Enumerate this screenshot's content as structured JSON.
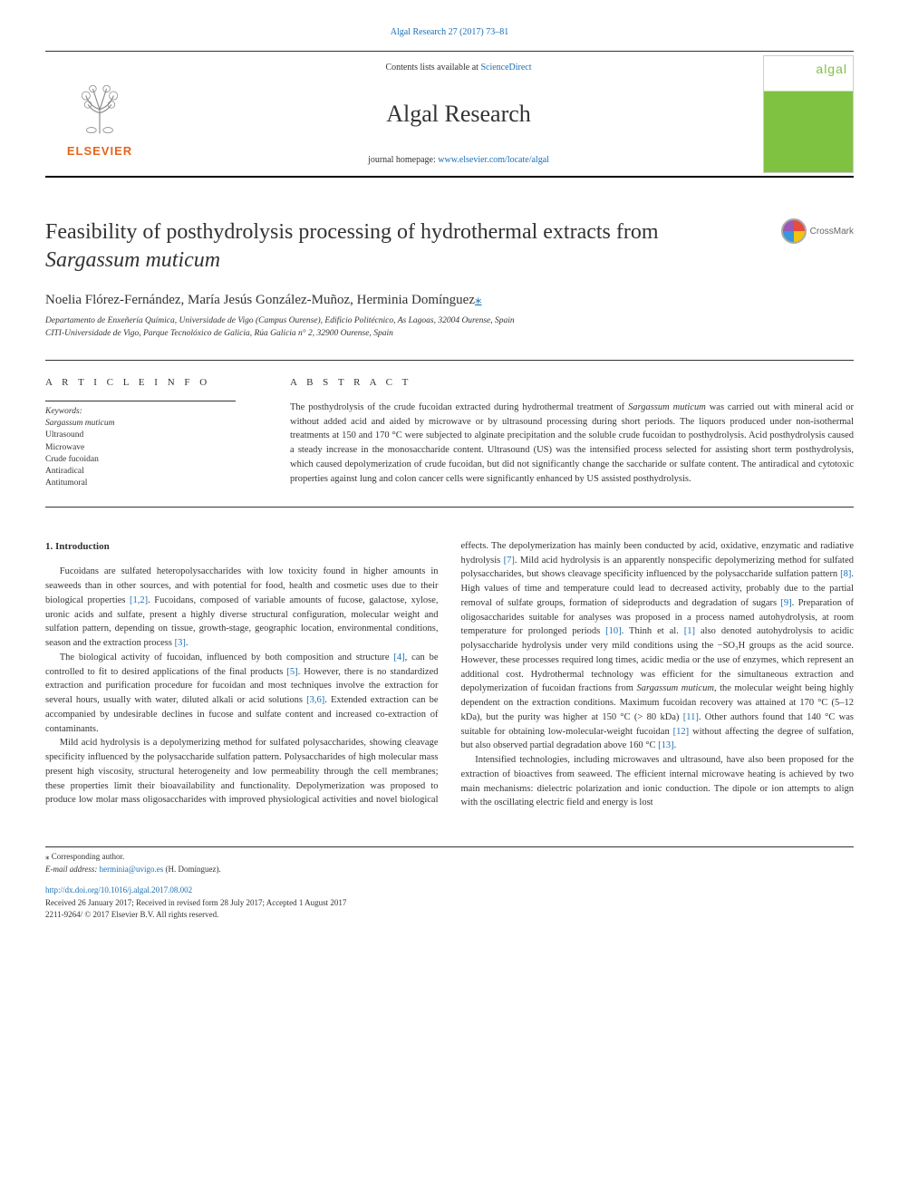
{
  "top_citation": "Algal Research 27 (2017) 73–81",
  "header": {
    "contents_prefix": "Contents lists available at ",
    "contents_link": "ScienceDirect",
    "journal_name": "Algal Research",
    "homepage_prefix": "journal homepage: ",
    "homepage_link": "www.elsevier.com/locate/algal",
    "elsevier_label": "ELSEVIER",
    "cover_logo": "algal"
  },
  "crossmark_label": "CrossMark",
  "title_part1": "Feasibility of posthydrolysis processing of hydrothermal extracts from ",
  "title_italic": "Sargassum muticum",
  "authors": "Noelia Flórez-Fernández, María Jesús González-Muñoz, Herminia Domínguez",
  "corresponding_marker": "⁎",
  "affiliation_line1": "Departamento de Enxeñería Química, Universidade de Vigo (Campus Ourense), Edificio Politécnico, As Lagoas, 32004 Ourense, Spain",
  "affiliation_line2": "CITI-Universidade de Vigo, Parque Tecnolóxico de Galicia, Rúa Galicia n° 2, 32900 Ourense, Spain",
  "article_info_header": "A R T I C L E  I N F O",
  "keywords_label": "Keywords:",
  "keywords": [
    {
      "text": "Sargassum muticum",
      "italic": true
    },
    {
      "text": "Ultrasound",
      "italic": false
    },
    {
      "text": "Microwave",
      "italic": false
    },
    {
      "text": "Crude fucoidan",
      "italic": false
    },
    {
      "text": "Antiradical",
      "italic": false
    },
    {
      "text": "Antitumoral",
      "italic": false
    }
  ],
  "abstract_header": "A B S T R A C T",
  "abstract_text": "The posthydrolysis of the crude fucoidan extracted during hydrothermal treatment of <em>Sargassum muticum</em> was carried out with mineral acid or without added acid and aided by microwave or by ultrasound processing during short periods. The liquors produced under non-isothermal treatments at 150 and 170 °C were subjected to alginate precipitation and the soluble crude fucoidan to posthydrolysis. Acid posthydrolysis caused a steady increase in the monosaccharide content. Ultrasound (US) was the intensified process selected for assisting short term posthydrolysis, which caused depolymerization of crude fucoidan, but did not significantly change the saccharide or sulfate content. The antiradical and cytotoxic properties against lung and colon cancer cells were significantly enhanced by US assisted posthydrolysis.",
  "intro_heading": "1. Introduction",
  "para1": "Fucoidans are sulfated heteropolysaccharides with low toxicity found in higher amounts in seaweeds than in other sources, and with potential for food, health and cosmetic uses due to their biological properties <a class='ref' href='#'>[1,2]</a>. Fucoidans, composed of variable amounts of fucose, galactose, xylose, uronic acids and sulfate, present a highly diverse structural configuration, molecular weight and sulfation pattern, depending on tissue, growth-stage, geographic location, environmental conditions, season and the extraction process <a class='ref' href='#'>[3]</a>.",
  "para2": "The biological activity of fucoidan, influenced by both composition and structure <a class='ref' href='#'>[4]</a>, can be controlled to fit to desired applications of the final products <a class='ref' href='#'>[5]</a>. However, there is no standardized extraction and purification procedure for fucoidan and most techniques involve the extraction for several hours, usually with water, diluted alkali or acid solutions <a class='ref' href='#'>[3,6]</a>. Extended extraction can be accompanied by undesirable declines in fucose and sulfate content and increased co-extraction of contaminants.",
  "para3": "Mild acid hydrolysis is a depolymerizing method for sulfated polysaccharides, showing cleavage specificity influenced by the polysaccharide sulfation pattern. Polysaccharides of high molecular mass present high viscosity, structural heterogeneity and low permeability through the cell membranes; these properties limit their bioavailability and functionality. Depolymerization was proposed to produce low molar mass oligosaccharides with improved physiological activities and novel biological effects. The depolymerization has mainly been conducted by acid, oxidative, enzymatic and radiative hydrolysis <a class='ref' href='#'>[7]</a>. Mild acid hydrolysis is an apparently nonspecific depolymerizing method for sulfated polysaccharides, but shows cleavage specificity influenced by the polysaccharide sulfation pattern <a class='ref' href='#'>[8]</a>. High values of time and temperature could lead to decreased activity, probably due to the partial removal of sulfate groups, formation of sideproducts and degradation of sugars <a class='ref' href='#'>[9]</a>. Preparation of oligosaccharides suitable for analyses was proposed in a process named autohydrolysis, at room temperature for prolonged periods <a class='ref' href='#'>[10]</a>. Thinh et al. <a class='ref' href='#'>[1]</a> also denoted autohydrolysis to acidic polysaccharide hydrolysis under very mild conditions using the −SO₃H groups as the acid source. However, these processes required long times, acidic media or the use of enzymes, which represent an additional cost. Hydrothermal technology was efficient for the simultaneous extraction and depolymerization of fucoidan fractions from <em>Sargassum muticum</em>, the molecular weight being highly dependent on the extraction conditions. Maximum fucoidan recovery was attained at 170 °C (5–12 kDa), but the purity was higher at 150 °C (> 80 kDa) <a class='ref' href='#'>[11]</a>. Other authors found that 140 °C was suitable for obtaining low-molecular-weight fucoidan <a class='ref' href='#'>[12]</a> without affecting the degree of sulfation, but also observed partial degradation above 160 °C <a class='ref' href='#'>[13]</a>.",
  "para4": "Intensified technologies, including microwaves and ultrasound, have also been proposed for the extraction of bioactives from seaweed. The efficient internal microwave heating is achieved by two main mechanisms: dielectric polarization and ionic conduction. The dipole or ion attempts to align with the oscillating electric field and energy is lost",
  "footer": {
    "corresponding_note": "⁎ Corresponding author.",
    "email_label": "E-mail address: ",
    "email": "herminia@uvigo.es",
    "email_suffix": " (H. Domínguez).",
    "doi": "http://dx.doi.org/10.1016/j.algal.2017.08.002",
    "received": "Received 26 January 2017; Received in revised form 28 July 2017; Accepted 1 August 2017",
    "copyright": "2211-9264/ © 2017 Elsevier B.V. All rights reserved."
  },
  "colors": {
    "link": "#1a6fb5",
    "elsevier_orange": "#e8641b",
    "algal_green": "#7fc241",
    "text": "#333333",
    "bg": "#ffffff"
  }
}
